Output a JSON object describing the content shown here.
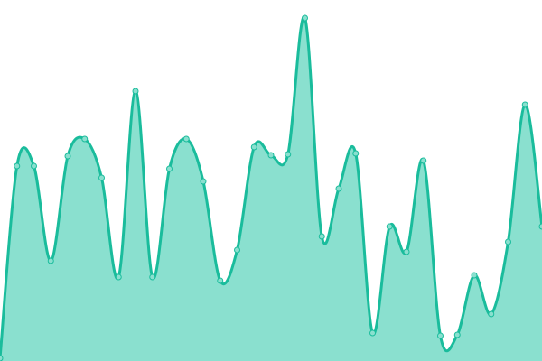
{
  "chart_data": {
    "type": "area",
    "title": "",
    "xlabel": "",
    "ylabel": "",
    "x": [
      0,
      1,
      2,
      3,
      4,
      5,
      6,
      7,
      8,
      9,
      10,
      11,
      12,
      13,
      14,
      15,
      16,
      17,
      18,
      19,
      20,
      21,
      22,
      23,
      24,
      25,
      26,
      27,
      28,
      29,
      30,
      31,
      32
    ],
    "values": [
      3,
      216,
      216,
      111,
      227,
      246,
      203,
      93,
      299,
      93,
      213,
      246,
      199,
      89,
      123,
      237,
      228,
      229,
      380,
      138,
      191,
      230,
      31,
      149,
      121,
      222,
      28,
      29,
      95,
      52,
      132,
      284,
      149
    ],
    "ylim": [
      0,
      400
    ],
    "xlim": [
      0,
      32
    ],
    "grid": false,
    "axes_visible": false,
    "smooth": true,
    "markers": true,
    "colors": {
      "line": "#1abc9c",
      "fill": "#8ae0cf",
      "marker_fill": "#8ae0cf",
      "marker_stroke": "#1abc9c"
    }
  }
}
